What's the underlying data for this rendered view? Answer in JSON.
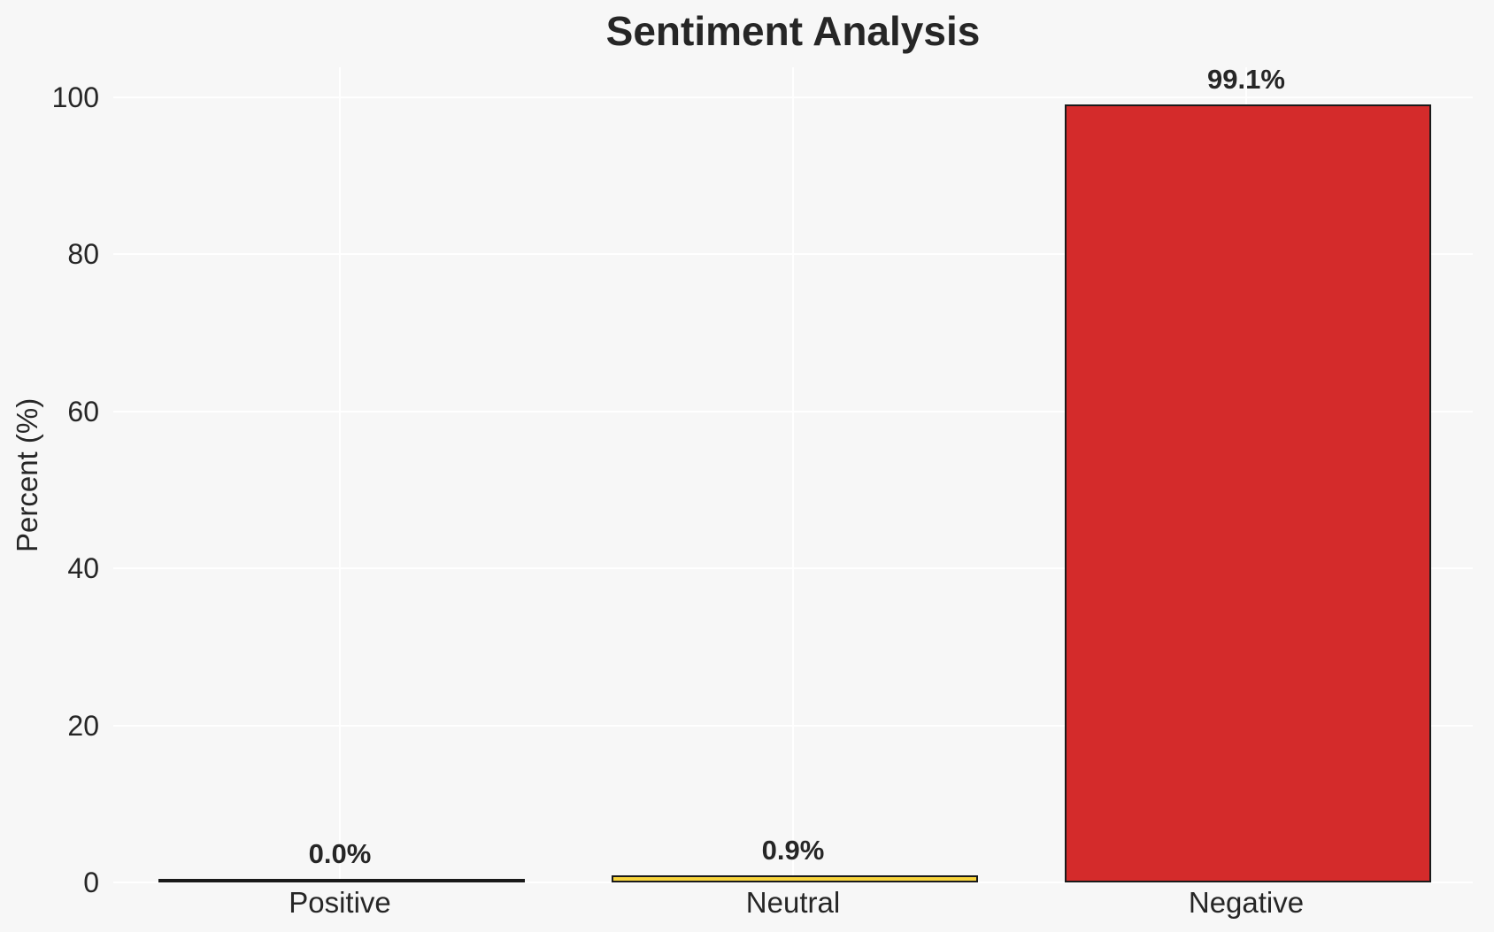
{
  "colors": {
    "background": "#f7f7f7",
    "grid": "#ffffff",
    "text": "#262626",
    "bar_edge": "#1a1a1a"
  },
  "chart_data": {
    "type": "bar",
    "title": "Sentiment Analysis",
    "xlabel": "",
    "ylabel": "Percent (%)",
    "categories": [
      "Positive",
      "Neutral",
      "Negative"
    ],
    "values": [
      0.0,
      0.9,
      99.1
    ],
    "value_labels": [
      "0.0%",
      "0.9%",
      "99.1%"
    ],
    "bar_colors": [
      "transparent",
      "#f8d43c",
      "#d42b2b"
    ],
    "yticks": [
      "0",
      "20",
      "40",
      "60",
      "80",
      "100"
    ],
    "ytick_values": [
      0,
      20,
      40,
      60,
      80,
      100
    ],
    "ylim": [
      0,
      104
    ],
    "grid": true,
    "legend": false
  }
}
